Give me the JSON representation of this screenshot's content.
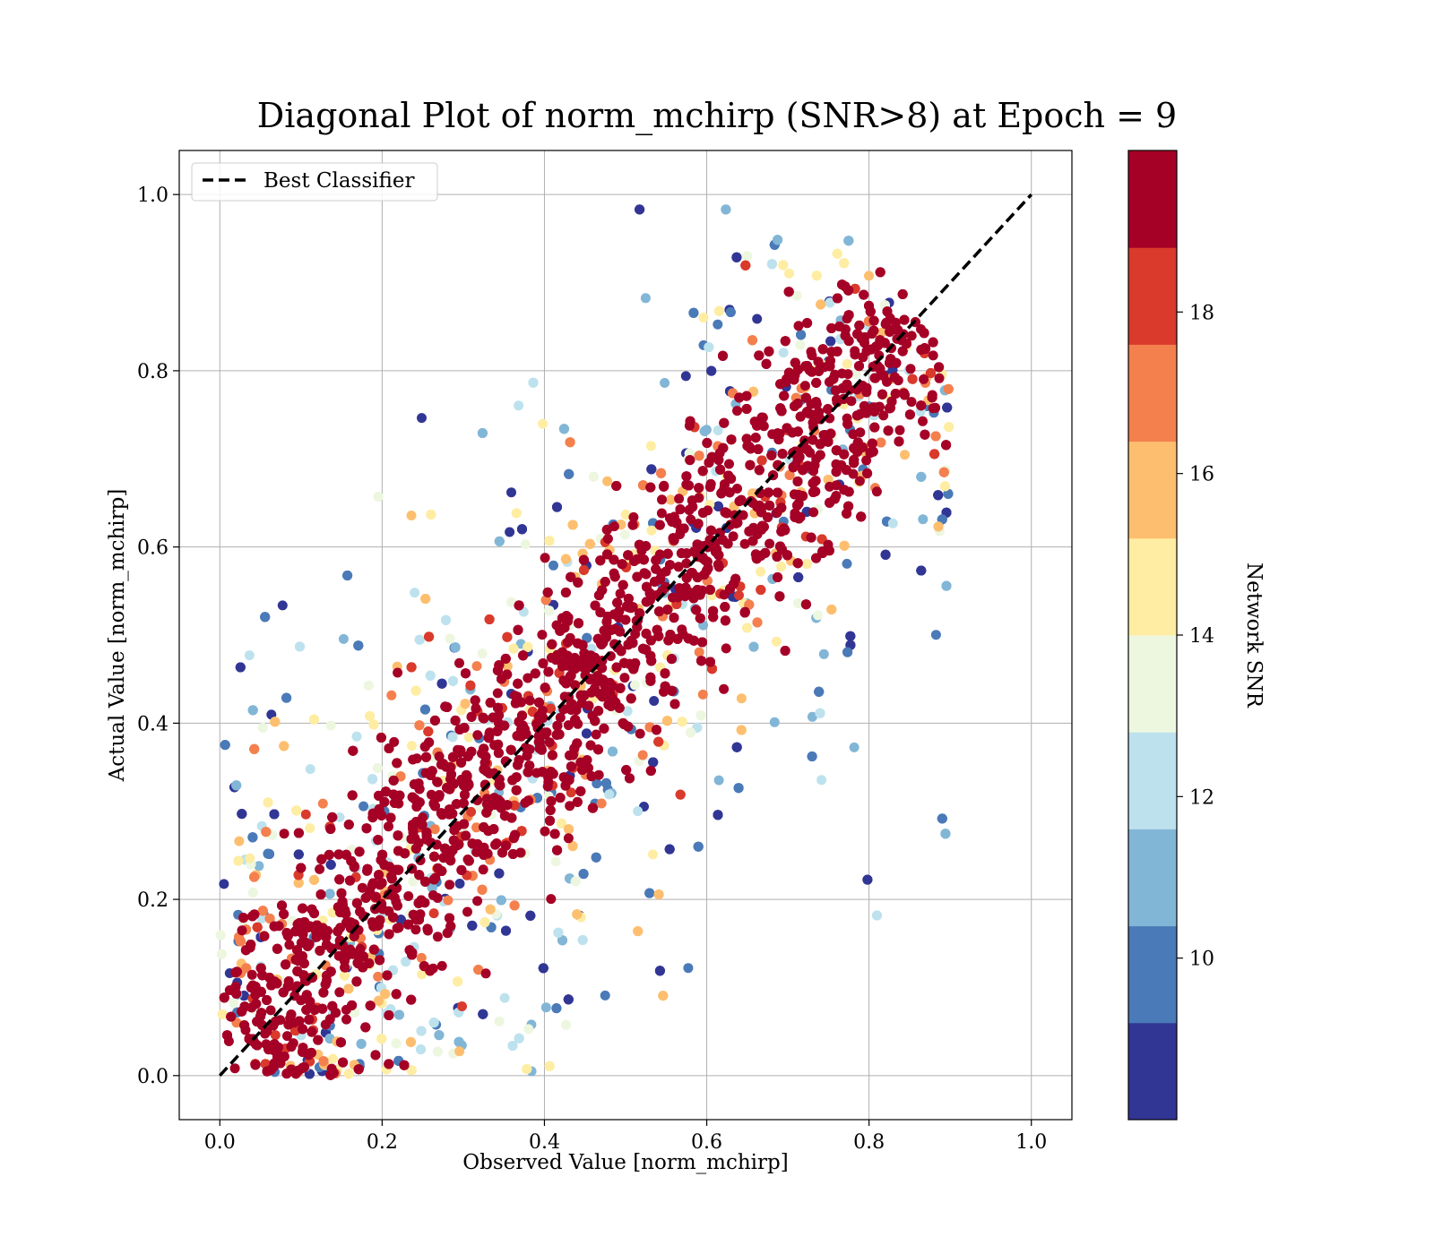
{
  "chart_data": {
    "type": "scatter",
    "title": "Diagonal Plot of norm_mchirp (SNR>8) at Epoch = 9",
    "xlabel": "Observed Value [norm_mchirp]",
    "ylabel": "Actual Value [norm_mchirp]",
    "xlim": [
      -0.05,
      1.05
    ],
    "ylim": [
      -0.05,
      1.05
    ],
    "x_ticks": [
      "0.0",
      "0.2",
      "0.4",
      "0.6",
      "0.8",
      "1.0"
    ],
    "y_ticks": [
      "0.0",
      "0.2",
      "0.4",
      "0.6",
      "0.8",
      "1.0"
    ],
    "grid": true,
    "legend": {
      "placement": "top-left",
      "entries": [
        "Best Classifier"
      ]
    },
    "reference_line": {
      "name": "Best Classifier",
      "style": "dashed",
      "color": "#000000",
      "x": [
        0.0,
        1.0
      ],
      "y": [
        0.0,
        1.0
      ]
    },
    "colorbar": {
      "label": "Network SNR",
      "range": [
        8,
        20
      ],
      "ticks": [
        "10",
        "12",
        "14",
        "16",
        "18"
      ],
      "bins": [
        {
          "from": 8,
          "to": 9.2,
          "color": "#313695"
        },
        {
          "from": 9.2,
          "to": 10.4,
          "color": "#4a7ab7"
        },
        {
          "from": 10.4,
          "to": 11.6,
          "color": "#82b6d6"
        },
        {
          "from": 11.6,
          "to": 12.8,
          "color": "#bde2ee"
        },
        {
          "from": 12.8,
          "to": 14.0,
          "color": "#edf7e0"
        },
        {
          "from": 14.0,
          "to": 15.2,
          "color": "#feeda2"
        },
        {
          "from": 15.2,
          "to": 16.4,
          "color": "#fdbf6f"
        },
        {
          "from": 16.4,
          "to": 17.6,
          "color": "#f4804e"
        },
        {
          "from": 17.6,
          "to": 18.8,
          "color": "#d93a2b"
        },
        {
          "from": 18.8,
          "to": 20.0,
          "color": "#a50026"
        }
      ]
    },
    "series_description": {
      "spread_by_snr": [
        {
          "snr_min": 18.8,
          "spread": 0.05
        },
        {
          "snr_min": 16.4,
          "spread": 0.08
        },
        {
          "snr_min": 14.0,
          "spread": 0.11
        },
        {
          "snr_min": 11.6,
          "spread": 0.14
        },
        {
          "snr_min": 8.0,
          "spread": 0.17
        }
      ]
    }
  }
}
